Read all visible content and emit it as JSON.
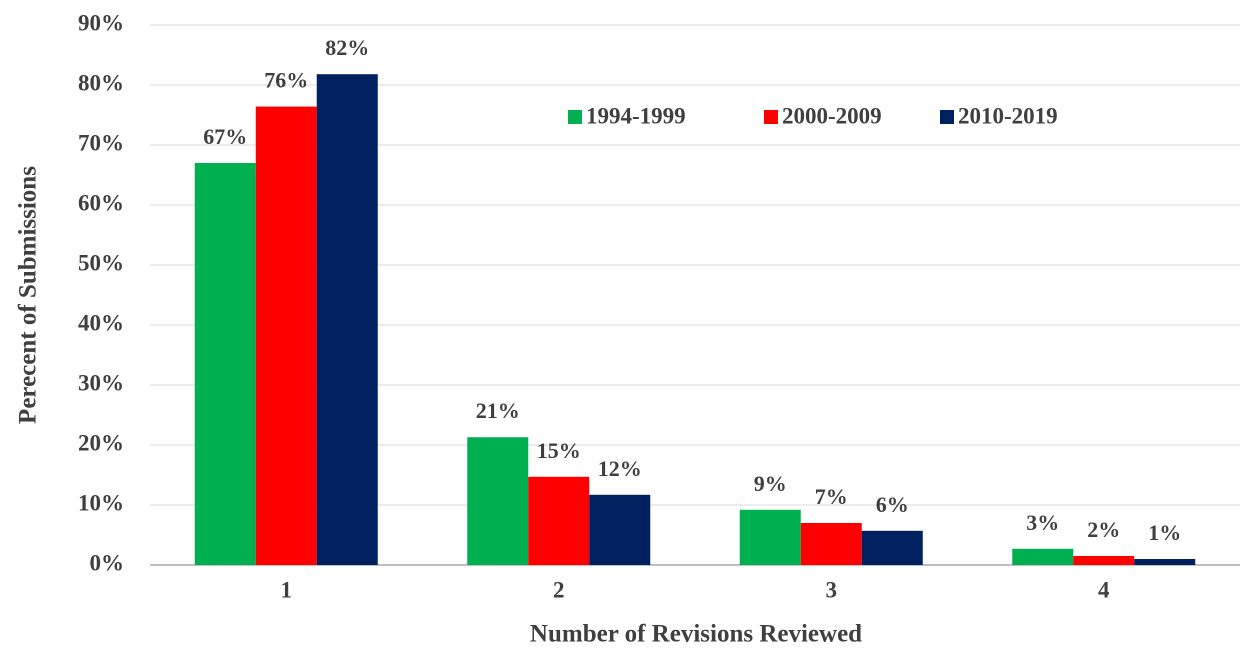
{
  "chart_data": {
    "type": "bar",
    "x_label": "Number of Revisions Reviewed",
    "y_label": "Perecent of Submissions",
    "categories": [
      "1",
      "2",
      "3",
      "4"
    ],
    "series": [
      {
        "name": "1994-1999",
        "color": "#00b050",
        "values": [
          67,
          21.3,
          9.2,
          2.7
        ],
        "value_labels": [
          "67%",
          "21%",
          "9%",
          "3%"
        ]
      },
      {
        "name": "2000-2009",
        "color": "#ff0000",
        "values": [
          76.4,
          14.7,
          7,
          1.5
        ],
        "value_labels": [
          "76%",
          "15%",
          "7%",
          "2%"
        ]
      },
      {
        "name": "2010-2019",
        "color": "#002060",
        "values": [
          81.8,
          11.7,
          5.7,
          1
        ],
        "value_labels": [
          "82%",
          "12%",
          "6%",
          "1%"
        ]
      }
    ],
    "ylim": [
      0,
      90
    ],
    "yticks": [
      {
        "value": 0,
        "label": "0%"
      },
      {
        "value": 10,
        "label": "10%"
      },
      {
        "value": 20,
        "label": "20%"
      },
      {
        "value": 30,
        "label": "30%"
      },
      {
        "value": 40,
        "label": "40%"
      },
      {
        "value": 50,
        "label": "50%"
      },
      {
        "value": 60,
        "label": "60%"
      },
      {
        "value": 70,
        "label": "70%"
      },
      {
        "value": 80,
        "label": "80%"
      },
      {
        "value": 90,
        "label": "90%"
      }
    ],
    "grid": true,
    "legend": "top"
  }
}
